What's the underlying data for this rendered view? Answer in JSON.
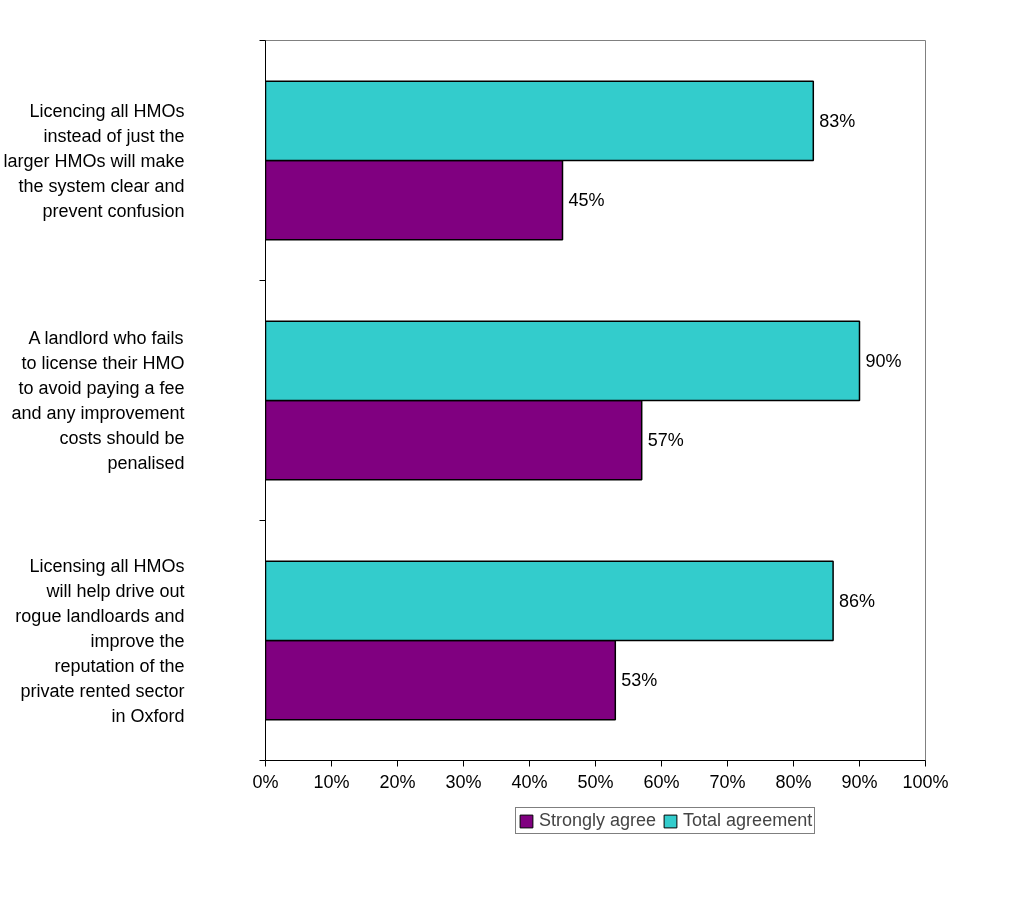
{
  "chart_data": {
    "type": "bar",
    "orientation": "horizontal",
    "categories": [
      "Licencing all HMOs instead of just the larger HMOs will make the system clear and prevent confusion",
      "A landlord who fails to license their HMO to avoid paying a fee and any improvement costs should be penalised",
      "Licensing all HMOs will help drive out rogue landloards and improve the reputation of the private rented sector in Oxford"
    ],
    "series": [
      {
        "name": "Strongly agree",
        "color": "#800080",
        "values": [
          45,
          57,
          53
        ],
        "value_labels": [
          "45%",
          "57%",
          "53%"
        ]
      },
      {
        "name": "Total agreement",
        "color": "#33cccc",
        "values": [
          83,
          90,
          86
        ],
        "value_labels": [
          "83%",
          "90%",
          "86%"
        ]
      }
    ],
    "xlim": [
      0,
      100
    ],
    "xticks": [
      {
        "value": 0,
        "label": "0%"
      },
      {
        "value": 10,
        "label": "10%"
      },
      {
        "value": 20,
        "label": "20%"
      },
      {
        "value": 30,
        "label": "30%"
      },
      {
        "value": 40,
        "label": "40%"
      },
      {
        "value": 50,
        "label": "50%"
      },
      {
        "value": 60,
        "label": "60%"
      },
      {
        "value": 70,
        "label": "70%"
      },
      {
        "value": 80,
        "label": "80%"
      },
      {
        "value": 90,
        "label": "90%"
      },
      {
        "value": 100,
        "label": "100%"
      }
    ],
    "grid": false,
    "legend": "bottom"
  }
}
